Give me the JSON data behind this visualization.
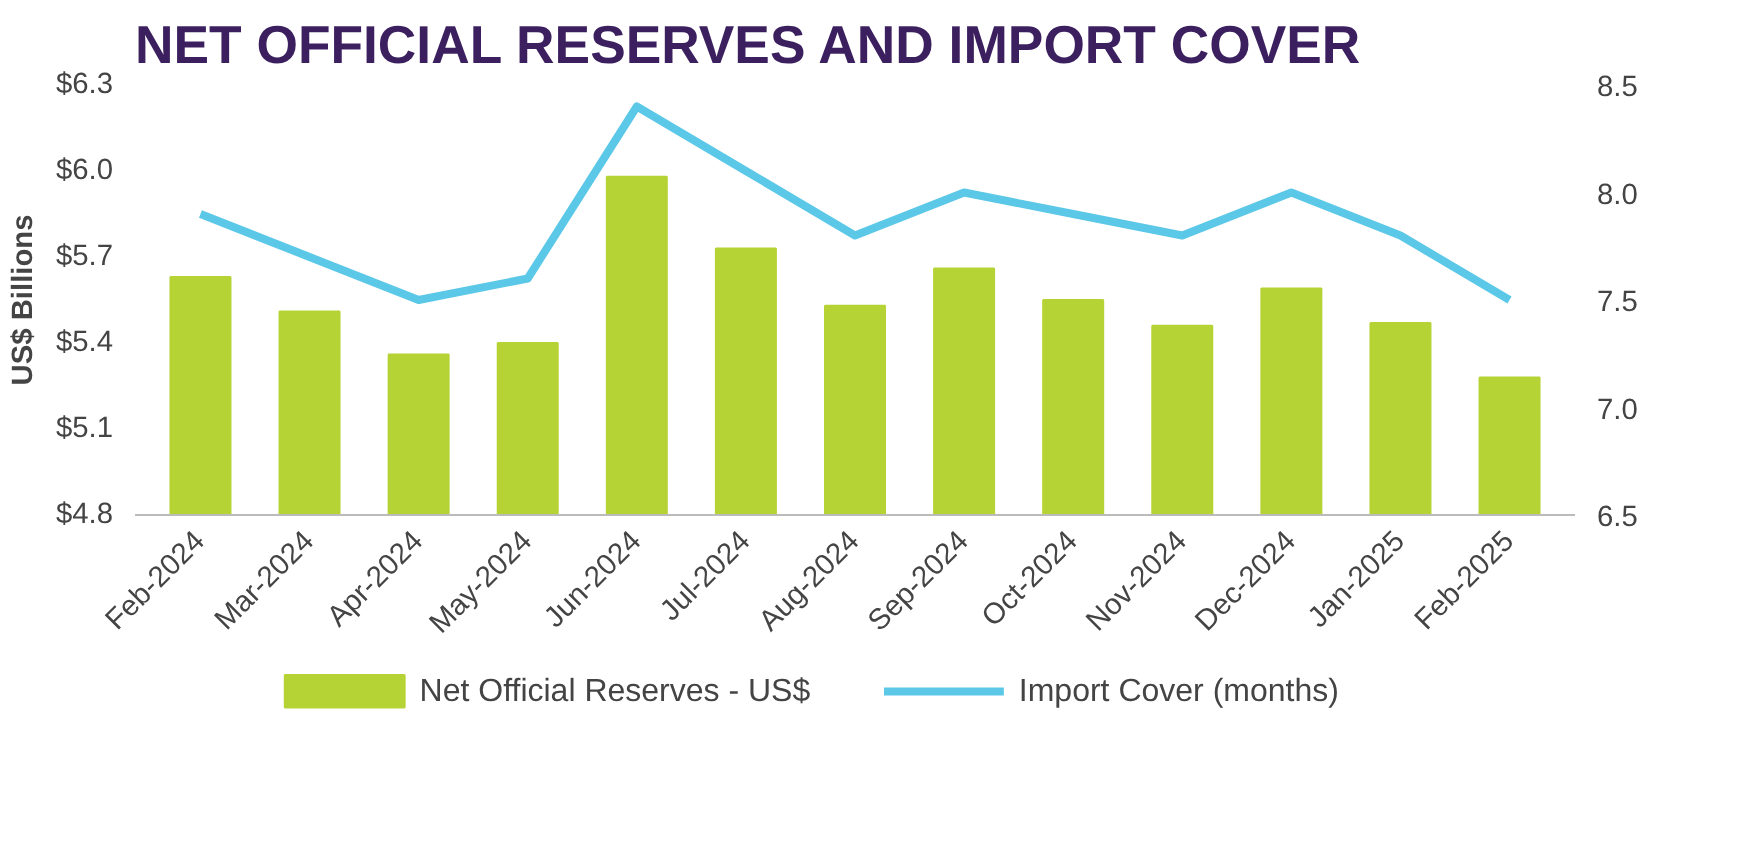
{
  "chart_data": {
    "type": "bar",
    "title": "NET OFFICIAL RESERVES AND IMPORT COVER",
    "ylabel": "US$ Billions",
    "categories": [
      "Feb-2024",
      "Mar-2024",
      "Apr-2024",
      "May-2024",
      "Jun-2024",
      "Jul-2024",
      "Aug-2024",
      "Sep-2024",
      "Oct-2024",
      "Nov-2024",
      "Dec-2024",
      "Jan-2025",
      "Feb-2025"
    ],
    "series": [
      {
        "name": "Net Official Reserves - US$",
        "color": "#b5d334",
        "values": [
          5.63,
          5.51,
          5.36,
          5.4,
          5.98,
          5.73,
          5.53,
          5.66,
          5.55,
          5.46,
          5.59,
          5.47,
          5.28
        ]
      },
      {
        "name": "Import Cover (months)",
        "type": "line",
        "axis": "y2",
        "color": "#5bc8e8",
        "values": [
          7.9,
          7.7,
          7.5,
          7.6,
          8.4,
          8.1,
          7.8,
          8.0,
          7.9,
          7.8,
          8.0,
          7.8,
          7.5
        ]
      }
    ],
    "ylim": [
      4.8,
      6.3
    ],
    "yticks": [
      {
        "value": 4.8,
        "label": "$4.8"
      },
      {
        "value": 5.1,
        "label": "$5.1"
      },
      {
        "value": 5.4,
        "label": "$5.4"
      },
      {
        "value": 5.7,
        "label": "$5.7"
      },
      {
        "value": 6.0,
        "label": "$6.0"
      },
      {
        "value": 6.3,
        "label": "$6.3"
      }
    ],
    "y2lim": [
      6.5,
      8.5
    ],
    "y2ticks": [
      {
        "value": 6.5,
        "label": "6.5"
      },
      {
        "value": 7.0,
        "label": "7.0"
      },
      {
        "value": 7.5,
        "label": "7.5"
      },
      {
        "value": 8.0,
        "label": "8.0"
      },
      {
        "value": 8.5,
        "label": "8.5"
      }
    ],
    "grid": false,
    "legend": "bottom",
    "marker": "none",
    "line_style": "solid"
  }
}
